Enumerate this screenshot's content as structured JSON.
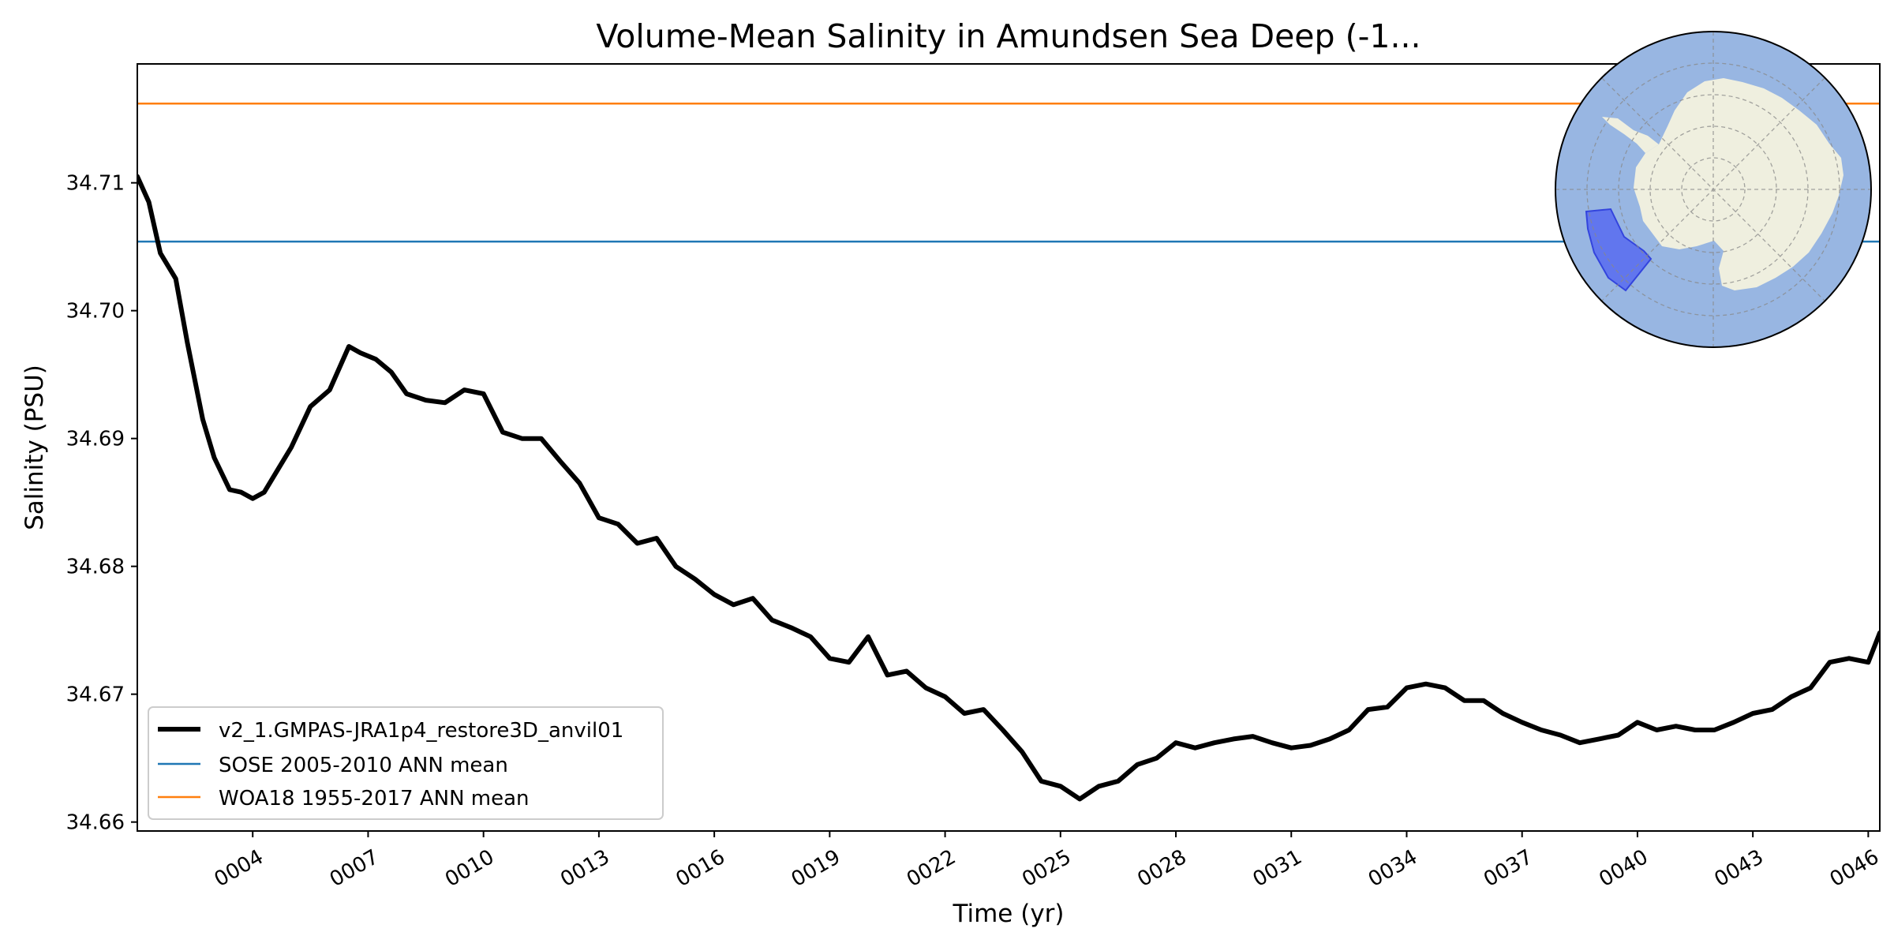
{
  "chart_data": {
    "type": "line",
    "title": "Volume-Mean Salinity in Amundsen Sea Deep (-1...",
    "xlabel": "Time (yr)",
    "ylabel": "Salinity (PSU)",
    "xlim": [
      1.0,
      46.3
    ],
    "ylim": [
      34.6593,
      34.7193
    ],
    "x_ticks": [
      {
        "value": 4,
        "label": "0004"
      },
      {
        "value": 7,
        "label": "0007"
      },
      {
        "value": 10,
        "label": "0010"
      },
      {
        "value": 13,
        "label": "0013"
      },
      {
        "value": 16,
        "label": "0016"
      },
      {
        "value": 19,
        "label": "0019"
      },
      {
        "value": 22,
        "label": "0022"
      },
      {
        "value": 25,
        "label": "0025"
      },
      {
        "value": 28,
        "label": "0028"
      },
      {
        "value": 31,
        "label": "0031"
      },
      {
        "value": 34,
        "label": "0034"
      },
      {
        "value": 37,
        "label": "0037"
      },
      {
        "value": 40,
        "label": "0040"
      },
      {
        "value": 43,
        "label": "0043"
      },
      {
        "value": 46,
        "label": "0046"
      }
    ],
    "y_ticks": [
      {
        "value": 34.66,
        "label": "34.66"
      },
      {
        "value": 34.67,
        "label": "34.67"
      },
      {
        "value": 34.68,
        "label": "34.68"
      },
      {
        "value": 34.69,
        "label": "34.69"
      },
      {
        "value": 34.7,
        "label": "34.70"
      },
      {
        "value": 34.71,
        "label": "34.71"
      }
    ],
    "grid": false,
    "legend_position": "lower-left",
    "series": [
      {
        "name": "v2_1.GMPAS-JRA1p4_restore3D_anvil01",
        "color": "#000000",
        "style": "solid-thick",
        "x": [
          1.0,
          1.3,
          1.6,
          2.0,
          2.3,
          2.7,
          3.0,
          3.4,
          3.7,
          4.0,
          4.3,
          4.7,
          5.0,
          5.5,
          6.0,
          6.5,
          6.8,
          7.2,
          7.6,
          8.0,
          8.5,
          9.0,
          9.5,
          10.0,
          10.5,
          11.0,
          11.5,
          12.0,
          12.5,
          13.0,
          13.5,
          14.0,
          14.5,
          15.0,
          15.5,
          16.0,
          16.5,
          17.0,
          17.5,
          18.0,
          18.5,
          19.0,
          19.5,
          20.0,
          20.5,
          21.0,
          21.5,
          22.0,
          22.5,
          23.0,
          23.5,
          24.0,
          24.5,
          25.0,
          25.5,
          26.0,
          26.5,
          27.0,
          27.5,
          28.0,
          28.5,
          29.0,
          29.5,
          30.0,
          30.5,
          31.0,
          31.5,
          32.0,
          32.5,
          33.0,
          33.5,
          34.0,
          34.5,
          35.0,
          35.5,
          36.0,
          36.5,
          37.0,
          37.5,
          38.0,
          38.5,
          39.0,
          39.5,
          40.0,
          40.5,
          41.0,
          41.5,
          42.0,
          42.5,
          43.0,
          43.5,
          44.0,
          44.5,
          45.0,
          45.5,
          46.0,
          46.3
        ],
        "values": [
          34.7105,
          34.7085,
          34.7045,
          34.7025,
          34.6975,
          34.6915,
          34.6885,
          34.686,
          34.6858,
          34.6853,
          34.6858,
          34.6878,
          34.6893,
          34.6925,
          34.6938,
          34.6972,
          34.6967,
          34.6962,
          34.6952,
          34.6935,
          34.693,
          34.6928,
          34.6938,
          34.6935,
          34.6905,
          34.69,
          34.69,
          34.6882,
          34.6865,
          34.6838,
          34.6833,
          34.6818,
          34.6822,
          34.68,
          34.679,
          34.6778,
          34.677,
          34.6775,
          34.6758,
          34.6752,
          34.6745,
          34.6728,
          34.6725,
          34.6745,
          34.6715,
          34.6718,
          34.6705,
          34.6698,
          34.6685,
          34.6688,
          34.6672,
          34.6655,
          34.6632,
          34.6628,
          34.6618,
          34.6628,
          34.6632,
          34.6645,
          34.665,
          34.6662,
          34.6658,
          34.6662,
          34.6665,
          34.6667,
          34.6662,
          34.6658,
          34.666,
          34.6665,
          34.6672,
          34.6688,
          34.669,
          34.6705,
          34.6708,
          34.6705,
          34.6695,
          34.6695,
          34.6685,
          34.6678,
          34.6672,
          34.6668,
          34.6662,
          34.6665,
          34.6668,
          34.6678,
          34.6672,
          34.6675,
          34.6672,
          34.6672,
          34.6678,
          34.6685,
          34.6688,
          34.6698,
          34.6705,
          34.6725,
          34.6728,
          34.6725,
          34.6748
        ]
      },
      {
        "name": "SOSE 2005-2010 ANN mean",
        "color": "#1f77b4",
        "style": "hline",
        "values": [
          34.7054
        ]
      },
      {
        "name": "WOA18 1955-2017 ANN mean",
        "color": "#ff7f0e",
        "style": "hline",
        "values": [
          34.7162
        ]
      }
    ],
    "inset_map": {
      "projection": "south-polar-stereographic",
      "ocean_color": "#98b6e2",
      "land_color": "#efefdf",
      "region_color": "#5b6ff0",
      "region": "Amundsen Sea"
    }
  }
}
